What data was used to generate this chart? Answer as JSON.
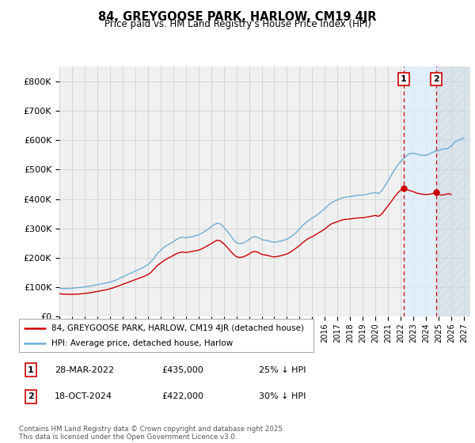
{
  "title": "84, GREYGOOSE PARK, HARLOW, CM19 4JR",
  "subtitle": "Price paid vs. HM Land Registry's House Price Index (HPI)",
  "hpi_color": "#6baed6",
  "price_color": "#cc0000",
  "ylim": [
    0,
    850000
  ],
  "yticks": [
    0,
    100000,
    200000,
    300000,
    400000,
    500000,
    600000,
    700000,
    800000
  ],
  "ytick_labels": [
    "£0",
    "£100K",
    "£200K",
    "£300K",
    "£400K",
    "£500K",
    "£600K",
    "£700K",
    "£800K"
  ],
  "xlim_start": 1995.0,
  "xlim_end": 2027.5,
  "legend_label_price": "84, GREYGOOSE PARK, HARLOW, CM19 4JR (detached house)",
  "legend_label_hpi": "HPI: Average price, detached house, Harlow",
  "sale1_date": "28-MAR-2022",
  "sale1_price": "£435,000",
  "sale1_discount": "25% ↓ HPI",
  "sale1_x": 2022.24,
  "sale2_date": "18-OCT-2024",
  "sale2_price": "£422,000",
  "sale2_discount": "30% ↓ HPI",
  "sale2_x": 2024.8,
  "footer": "Contains HM Land Registry data © Crown copyright and database right 2025.\nThis data is licensed under the Open Government Licence v3.0.",
  "hpi_data": [
    [
      1995.0,
      97000
    ],
    [
      1995.25,
      96000
    ],
    [
      1995.5,
      95500
    ],
    [
      1995.75,
      96000
    ],
    [
      1996.0,
      97000
    ],
    [
      1996.25,
      98000
    ],
    [
      1996.5,
      99000
    ],
    [
      1996.75,
      100000
    ],
    [
      1997.0,
      101000
    ],
    [
      1997.25,
      103000
    ],
    [
      1997.5,
      105000
    ],
    [
      1997.75,
      107000
    ],
    [
      1998.0,
      109000
    ],
    [
      1998.25,
      111000
    ],
    [
      1998.5,
      113000
    ],
    [
      1998.75,
      115000
    ],
    [
      1999.0,
      118000
    ],
    [
      1999.25,
      121000
    ],
    [
      1999.5,
      125000
    ],
    [
      1999.75,
      130000
    ],
    [
      2000.0,
      135000
    ],
    [
      2000.25,
      140000
    ],
    [
      2000.5,
      145000
    ],
    [
      2000.75,
      150000
    ],
    [
      2001.0,
      155000
    ],
    [
      2001.25,
      160000
    ],
    [
      2001.5,
      165000
    ],
    [
      2001.75,
      170000
    ],
    [
      2002.0,
      177000
    ],
    [
      2002.25,
      187000
    ],
    [
      2002.5,
      200000
    ],
    [
      2002.75,
      215000
    ],
    [
      2003.0,
      225000
    ],
    [
      2003.25,
      235000
    ],
    [
      2003.5,
      243000
    ],
    [
      2003.75,
      248000
    ],
    [
      2004.0,
      255000
    ],
    [
      2004.25,
      262000
    ],
    [
      2004.5,
      268000
    ],
    [
      2004.75,
      270000
    ],
    [
      2005.0,
      268000
    ],
    [
      2005.25,
      270000
    ],
    [
      2005.5,
      272000
    ],
    [
      2005.75,
      275000
    ],
    [
      2006.0,
      278000
    ],
    [
      2006.25,
      283000
    ],
    [
      2006.5,
      290000
    ],
    [
      2006.75,
      297000
    ],
    [
      2007.0,
      305000
    ],
    [
      2007.25,
      313000
    ],
    [
      2007.5,
      318000
    ],
    [
      2007.75,
      315000
    ],
    [
      2008.0,
      305000
    ],
    [
      2008.25,
      292000
    ],
    [
      2008.5,
      278000
    ],
    [
      2008.75,
      263000
    ],
    [
      2009.0,
      252000
    ],
    [
      2009.25,
      248000
    ],
    [
      2009.5,
      250000
    ],
    [
      2009.75,
      255000
    ],
    [
      2010.0,
      262000
    ],
    [
      2010.25,
      270000
    ],
    [
      2010.5,
      272000
    ],
    [
      2010.75,
      268000
    ],
    [
      2011.0,
      262000
    ],
    [
      2011.25,
      260000
    ],
    [
      2011.5,
      258000
    ],
    [
      2011.75,
      255000
    ],
    [
      2012.0,
      253000
    ],
    [
      2012.25,
      255000
    ],
    [
      2012.5,
      257000
    ],
    [
      2012.75,
      260000
    ],
    [
      2013.0,
      263000
    ],
    [
      2013.25,
      270000
    ],
    [
      2013.5,
      278000
    ],
    [
      2013.75,
      287000
    ],
    [
      2014.0,
      298000
    ],
    [
      2014.25,
      310000
    ],
    [
      2014.5,
      320000
    ],
    [
      2014.75,
      328000
    ],
    [
      2015.0,
      335000
    ],
    [
      2015.25,
      342000
    ],
    [
      2015.5,
      350000
    ],
    [
      2015.75,
      358000
    ],
    [
      2016.0,
      367000
    ],
    [
      2016.25,
      378000
    ],
    [
      2016.5,
      387000
    ],
    [
      2016.75,
      392000
    ],
    [
      2017.0,
      397000
    ],
    [
      2017.25,
      402000
    ],
    [
      2017.5,
      405000
    ],
    [
      2017.75,
      407000
    ],
    [
      2018.0,
      408000
    ],
    [
      2018.25,
      410000
    ],
    [
      2018.5,
      412000
    ],
    [
      2018.75,
      413000
    ],
    [
      2019.0,
      413000
    ],
    [
      2019.25,
      415000
    ],
    [
      2019.5,
      418000
    ],
    [
      2019.75,
      420000
    ],
    [
      2020.0,
      422000
    ],
    [
      2020.25,
      418000
    ],
    [
      2020.5,
      428000
    ],
    [
      2020.75,
      445000
    ],
    [
      2021.0,
      462000
    ],
    [
      2021.25,
      480000
    ],
    [
      2021.5,
      498000
    ],
    [
      2021.75,
      515000
    ],
    [
      2022.0,
      527000
    ],
    [
      2022.25,
      538000
    ],
    [
      2022.5,
      548000
    ],
    [
      2022.75,
      555000
    ],
    [
      2023.0,
      555000
    ],
    [
      2023.25,
      553000
    ],
    [
      2023.5,
      550000
    ],
    [
      2023.75,
      548000
    ],
    [
      2024.0,
      548000
    ],
    [
      2024.25,
      552000
    ],
    [
      2024.5,
      558000
    ],
    [
      2024.75,
      562000
    ],
    [
      2025.0,
      565000
    ],
    [
      2025.25,
      568000
    ],
    [
      2025.5,
      570000
    ],
    [
      2025.75,
      572000
    ],
    [
      2026.0,
      580000
    ],
    [
      2026.25,
      592000
    ],
    [
      2026.5,
      598000
    ],
    [
      2026.75,
      602000
    ],
    [
      2027.0,
      608000
    ]
  ],
  "price_data": [
    [
      1995.0,
      78000
    ],
    [
      1995.25,
      77000
    ],
    [
      1995.5,
      76500
    ],
    [
      1995.75,
      76000
    ],
    [
      1996.0,
      76000
    ],
    [
      1996.25,
      76500
    ],
    [
      1996.5,
      77000
    ],
    [
      1996.75,
      78000
    ],
    [
      1997.0,
      79000
    ],
    [
      1997.25,
      80500
    ],
    [
      1997.5,
      82000
    ],
    [
      1997.75,
      84000
    ],
    [
      1998.0,
      86000
    ],
    [
      1998.25,
      88000
    ],
    [
      1998.5,
      90000
    ],
    [
      1998.75,
      92000
    ],
    [
      1999.0,
      95000
    ],
    [
      1999.25,
      98000
    ],
    [
      1999.5,
      102000
    ],
    [
      1999.75,
      106000
    ],
    [
      2000.0,
      110000
    ],
    [
      2000.25,
      114000
    ],
    [
      2000.5,
      118000
    ],
    [
      2000.75,
      122000
    ],
    [
      2001.0,
      126000
    ],
    [
      2001.25,
      130000
    ],
    [
      2001.5,
      134000
    ],
    [
      2001.75,
      138000
    ],
    [
      2002.0,
      143000
    ],
    [
      2002.25,
      151000
    ],
    [
      2002.5,
      162000
    ],
    [
      2002.75,
      174000
    ],
    [
      2003.0,
      182000
    ],
    [
      2003.25,
      190000
    ],
    [
      2003.5,
      197000
    ],
    [
      2003.75,
      202000
    ],
    [
      2004.0,
      208000
    ],
    [
      2004.25,
      214000
    ],
    [
      2004.5,
      218000
    ],
    [
      2004.75,
      220000
    ],
    [
      2005.0,
      218000
    ],
    [
      2005.25,
      220000
    ],
    [
      2005.5,
      222000
    ],
    [
      2005.75,
      224000
    ],
    [
      2006.0,
      226000
    ],
    [
      2006.25,
      230000
    ],
    [
      2006.5,
      236000
    ],
    [
      2006.75,
      242000
    ],
    [
      2007.0,
      248000
    ],
    [
      2007.25,
      255000
    ],
    [
      2007.5,
      260000
    ],
    [
      2007.75,
      257000
    ],
    [
      2008.0,
      248000
    ],
    [
      2008.25,
      237000
    ],
    [
      2008.5,
      225000
    ],
    [
      2008.75,
      213000
    ],
    [
      2009.0,
      204000
    ],
    [
      2009.25,
      201000
    ],
    [
      2009.5,
      203000
    ],
    [
      2009.75,
      207000
    ],
    [
      2010.0,
      213000
    ],
    [
      2010.25,
      220000
    ],
    [
      2010.5,
      222000
    ],
    [
      2010.75,
      218000
    ],
    [
      2011.0,
      212000
    ],
    [
      2011.25,
      210000
    ],
    [
      2011.5,
      208000
    ],
    [
      2011.75,
      205000
    ],
    [
      2012.0,
      203000
    ],
    [
      2012.25,
      205000
    ],
    [
      2012.5,
      207000
    ],
    [
      2012.75,
      210000
    ],
    [
      2013.0,
      213000
    ],
    [
      2013.25,
      219000
    ],
    [
      2013.5,
      226000
    ],
    [
      2013.75,
      234000
    ],
    [
      2014.0,
      242000
    ],
    [
      2014.25,
      252000
    ],
    [
      2014.5,
      260000
    ],
    [
      2014.75,
      267000
    ],
    [
      2015.0,
      272000
    ],
    [
      2015.25,
      278000
    ],
    [
      2015.5,
      285000
    ],
    [
      2015.75,
      291000
    ],
    [
      2016.0,
      298000
    ],
    [
      2016.25,
      307000
    ],
    [
      2016.5,
      315000
    ],
    [
      2016.75,
      319000
    ],
    [
      2017.0,
      323000
    ],
    [
      2017.25,
      327000
    ],
    [
      2017.5,
      330000
    ],
    [
      2017.75,
      331000
    ],
    [
      2018.0,
      332000
    ],
    [
      2018.25,
      334000
    ],
    [
      2018.5,
      335000
    ],
    [
      2018.75,
      336000
    ],
    [
      2019.0,
      336000
    ],
    [
      2019.25,
      338000
    ],
    [
      2019.5,
      340000
    ],
    [
      2019.75,
      342000
    ],
    [
      2020.0,
      344000
    ],
    [
      2020.25,
      341000
    ],
    [
      2020.5,
      349000
    ],
    [
      2020.75,
      363000
    ],
    [
      2021.0,
      377000
    ],
    [
      2021.25,
      391000
    ],
    [
      2021.5,
      406000
    ],
    [
      2021.75,
      420000
    ],
    [
      2022.0,
      430000
    ],
    [
      2022.24,
      435000
    ],
    [
      2022.5,
      432000
    ],
    [
      2022.75,
      428000
    ],
    [
      2023.0,
      425000
    ],
    [
      2023.25,
      420000
    ],
    [
      2023.5,
      418000
    ],
    [
      2023.75,
      416000
    ],
    [
      2024.0,
      415000
    ],
    [
      2024.25,
      416000
    ],
    [
      2024.5,
      418000
    ],
    [
      2024.8,
      422000
    ],
    [
      2025.0,
      415000
    ],
    [
      2025.25,
      413000
    ],
    [
      2025.5,
      415000
    ],
    [
      2025.75,
      418000
    ],
    [
      2026.0,
      415000
    ]
  ],
  "vline1_x": 2022.24,
  "vline2_x": 2024.8,
  "vline_color": "#cc0000",
  "grid_color": "#cccccc",
  "bg_color": "#ffffff",
  "plot_bg_color": "#f0f0f0",
  "hatch_color": "#c8d8e8",
  "span_color": "#ddeeff"
}
